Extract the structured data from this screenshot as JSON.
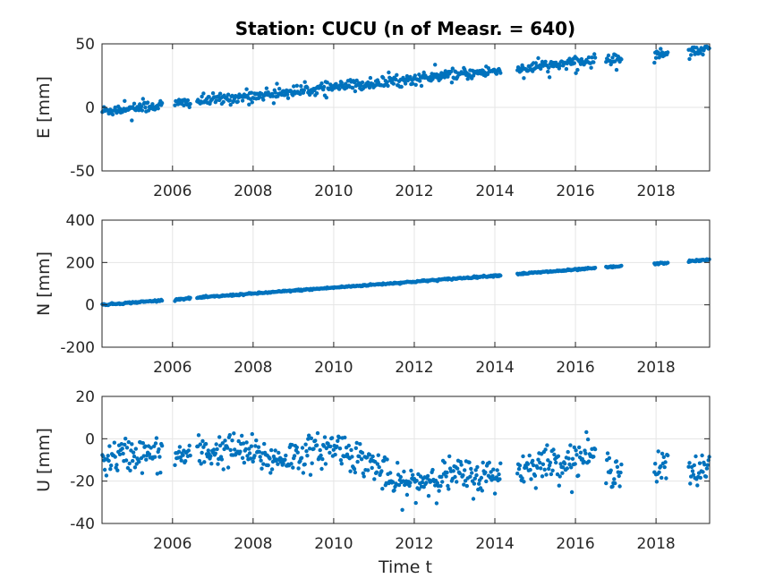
{
  "figure": {
    "title": "Station: CUCU (n of Measr. = 640)",
    "xlabel": "Time t",
    "marker_color": "#0072BD"
  },
  "chart_data": [
    {
      "type": "scatter",
      "ylabel": "E [mm]",
      "xlim": [
        2004.25,
        2019.33
      ],
      "ylim": [
        -50,
        50
      ],
      "xticks": [
        "2006",
        "2008",
        "2010",
        "2012",
        "2014",
        "2016",
        "2018"
      ],
      "yticks": [
        "-50",
        "0",
        "50"
      ],
      "grid": true,
      "trend": {
        "start": -3,
        "end": 46,
        "noise": 2.2,
        "outlier_prob": 0.02
      },
      "segments": [
        [
          2004.25,
          2005.75
        ],
        [
          2006.05,
          2006.45
        ],
        [
          2006.6,
          2014.15
        ],
        [
          2014.55,
          2016.5
        ],
        [
          2016.75,
          2017.15
        ],
        [
          2017.95,
          2018.3
        ],
        [
          2018.8,
          2019.33
        ]
      ]
    },
    {
      "type": "scatter",
      "ylabel": "N [mm]",
      "xlim": [
        2004.25,
        2019.33
      ],
      "ylim": [
        -200,
        400
      ],
      "xticks": [
        "2006",
        "2008",
        "2010",
        "2012",
        "2014",
        "2016",
        "2018"
      ],
      "yticks": [
        "-200",
        "0",
        "200",
        "400"
      ],
      "grid": true,
      "trend": {
        "start": 0,
        "end": 213,
        "noise": 2.0,
        "outlier_prob": 0
      },
      "segments": [
        [
          2004.25,
          2005.75
        ],
        [
          2006.05,
          2006.45
        ],
        [
          2006.6,
          2014.15
        ],
        [
          2014.55,
          2016.5
        ],
        [
          2016.75,
          2017.15
        ],
        [
          2017.95,
          2018.3
        ],
        [
          2018.8,
          2019.33
        ]
      ]
    },
    {
      "type": "scatter",
      "ylabel": "U [mm]",
      "xlim": [
        2004.25,
        2019.33
      ],
      "ylim": [
        -40,
        20
      ],
      "xticks": [
        "2006",
        "2008",
        "2010",
        "2012",
        "2014",
        "2016",
        "2018"
      ],
      "yticks": [
        "-40",
        "-20",
        "0",
        "20"
      ],
      "grid": true,
      "trend_profile": [
        [
          2004.25,
          -10
        ],
        [
          2005.0,
          -7
        ],
        [
          2005.75,
          -8
        ],
        [
          2006.2,
          -8
        ],
        [
          2007.0,
          -6
        ],
        [
          2007.5,
          -5
        ],
        [
          2008.0,
          -7
        ],
        [
          2008.5,
          -10
        ],
        [
          2009.0,
          -8
        ],
        [
          2009.6,
          -6
        ],
        [
          2010.1,
          -3
        ],
        [
          2010.5,
          -8
        ],
        [
          2011.0,
          -12
        ],
        [
          2011.5,
          -22
        ],
        [
          2012.0,
          -21
        ],
        [
          2012.5,
          -18
        ],
        [
          2013.0,
          -17
        ],
        [
          2013.5,
          -18
        ],
        [
          2014.0,
          -17
        ],
        [
          2014.5,
          -15
        ],
        [
          2015.0,
          -12
        ],
        [
          2015.5,
          -11
        ],
        [
          2016.0,
          -10
        ],
        [
          2016.3,
          -7
        ],
        [
          2016.75,
          -14
        ],
        [
          2017.15,
          -14
        ],
        [
          2017.95,
          -16
        ],
        [
          2018.3,
          -12
        ],
        [
          2018.8,
          -18
        ],
        [
          2019.33,
          -12
        ]
      ],
      "noise": 4.0,
      "segments": [
        [
          2004.25,
          2005.75
        ],
        [
          2006.05,
          2006.45
        ],
        [
          2006.6,
          2014.15
        ],
        [
          2014.55,
          2016.5
        ],
        [
          2016.75,
          2017.15
        ],
        [
          2017.95,
          2018.3
        ],
        [
          2018.8,
          2019.33
        ]
      ]
    }
  ]
}
